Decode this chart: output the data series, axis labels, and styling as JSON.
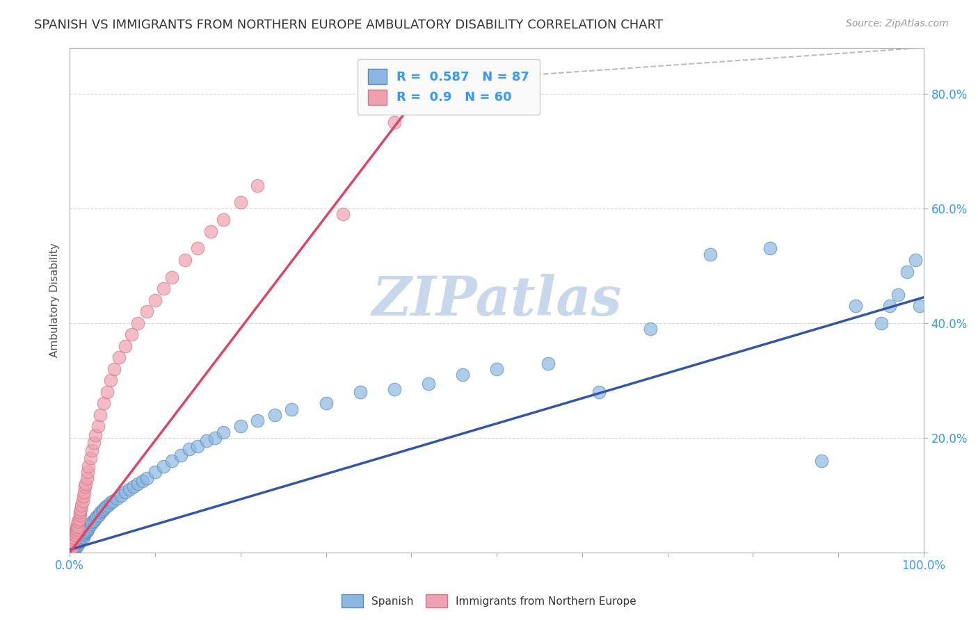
{
  "title": "SPANISH VS IMMIGRANTS FROM NORTHERN EUROPE AMBULATORY DISABILITY CORRELATION CHART",
  "source": "Source: ZipAtlas.com",
  "ylabel": "Ambulatory Disability",
  "xlim": [
    0,
    1.0
  ],
  "ylim": [
    0,
    0.88
  ],
  "xticks": [
    0.0,
    0.1,
    0.2,
    0.3,
    0.4,
    0.5,
    0.6,
    0.7,
    0.8,
    0.9,
    1.0
  ],
  "xticklabels": [
    "0.0%",
    "",
    "",
    "",
    "",
    "",
    "",
    "",
    "",
    "",
    "100.0%"
  ],
  "yticks": [
    0.0,
    0.2,
    0.4,
    0.6,
    0.8
  ],
  "yticklabels": [
    "",
    "20.0%",
    "40.0%",
    "60.0%",
    "80.0%"
  ],
  "spanish_color": "#8BB8E0",
  "spanish_edge": "#5588BB",
  "immigrant_color": "#F0A0B0",
  "immigrant_edge": "#CC7788",
  "trend_blue": "#3355AA",
  "trend_pink": "#DD4466",
  "trend_dashed": "#BBBBBB",
  "legend_box_color": "#FAFAFA",
  "watermark_color": "#C8D8EC",
  "R_spanish": 0.587,
  "N_spanish": 87,
  "R_immigrant": 0.9,
  "N_immigrant": 60,
  "background_color": "#FFFFFF",
  "grid_color": "#CCCCCC",
  "title_fontsize": 13,
  "axis_label_color": "#3399FF",
  "tick_label_color": "#3399FF",
  "spanish_x": [
    0.001,
    0.002,
    0.003,
    0.003,
    0.004,
    0.004,
    0.005,
    0.005,
    0.006,
    0.006,
    0.007,
    0.007,
    0.007,
    0.008,
    0.008,
    0.009,
    0.009,
    0.01,
    0.01,
    0.011,
    0.011,
    0.012,
    0.012,
    0.013,
    0.014,
    0.015,
    0.016,
    0.017,
    0.018,
    0.019,
    0.02,
    0.021,
    0.022,
    0.023,
    0.025,
    0.026,
    0.028,
    0.03,
    0.032,
    0.034,
    0.036,
    0.038,
    0.04,
    0.042,
    0.045,
    0.048,
    0.05,
    0.055,
    0.06,
    0.065,
    0.07,
    0.075,
    0.08,
    0.085,
    0.09,
    0.1,
    0.11,
    0.12,
    0.13,
    0.14,
    0.15,
    0.16,
    0.17,
    0.18,
    0.2,
    0.22,
    0.24,
    0.26,
    0.3,
    0.34,
    0.38,
    0.42,
    0.46,
    0.5,
    0.56,
    0.62,
    0.68,
    0.75,
    0.82,
    0.88,
    0.92,
    0.95,
    0.96,
    0.97,
    0.98,
    0.99,
    0.995
  ],
  "spanish_y": [
    0.002,
    0.004,
    0.003,
    0.006,
    0.005,
    0.008,
    0.007,
    0.01,
    0.009,
    0.012,
    0.008,
    0.011,
    0.014,
    0.013,
    0.016,
    0.015,
    0.018,
    0.014,
    0.017,
    0.02,
    0.022,
    0.019,
    0.023,
    0.025,
    0.028,
    0.03,
    0.027,
    0.032,
    0.034,
    0.036,
    0.038,
    0.04,
    0.043,
    0.046,
    0.05,
    0.053,
    0.056,
    0.06,
    0.063,
    0.066,
    0.07,
    0.073,
    0.076,
    0.08,
    0.083,
    0.087,
    0.09,
    0.095,
    0.1,
    0.105,
    0.11,
    0.115,
    0.12,
    0.125,
    0.13,
    0.14,
    0.15,
    0.16,
    0.17,
    0.18,
    0.185,
    0.195,
    0.2,
    0.21,
    0.22,
    0.23,
    0.24,
    0.25,
    0.26,
    0.28,
    0.285,
    0.295,
    0.31,
    0.32,
    0.33,
    0.28,
    0.39,
    0.52,
    0.53,
    0.16,
    0.43,
    0.4,
    0.43,
    0.45,
    0.49,
    0.51,
    0.43
  ],
  "immigrant_x": [
    0.001,
    0.001,
    0.002,
    0.002,
    0.003,
    0.003,
    0.003,
    0.004,
    0.004,
    0.005,
    0.005,
    0.006,
    0.006,
    0.007,
    0.007,
    0.008,
    0.008,
    0.009,
    0.009,
    0.01,
    0.01,
    0.011,
    0.012,
    0.012,
    0.013,
    0.014,
    0.015,
    0.016,
    0.017,
    0.018,
    0.019,
    0.02,
    0.021,
    0.022,
    0.024,
    0.026,
    0.028,
    0.03,
    0.033,
    0.036,
    0.04,
    0.044,
    0.048,
    0.052,
    0.058,
    0.065,
    0.072,
    0.08,
    0.09,
    0.1,
    0.11,
    0.12,
    0.135,
    0.15,
    0.165,
    0.18,
    0.2,
    0.22,
    0.32,
    0.38
  ],
  "immigrant_y": [
    0.003,
    0.006,
    0.008,
    0.012,
    0.01,
    0.015,
    0.02,
    0.018,
    0.025,
    0.022,
    0.028,
    0.025,
    0.032,
    0.03,
    0.038,
    0.035,
    0.042,
    0.04,
    0.048,
    0.045,
    0.055,
    0.058,
    0.065,
    0.07,
    0.075,
    0.082,
    0.09,
    0.098,
    0.105,
    0.115,
    0.12,
    0.13,
    0.14,
    0.15,
    0.165,
    0.178,
    0.192,
    0.205,
    0.22,
    0.24,
    0.26,
    0.28,
    0.3,
    0.32,
    0.34,
    0.36,
    0.38,
    0.4,
    0.42,
    0.44,
    0.46,
    0.48,
    0.51,
    0.53,
    0.56,
    0.58,
    0.61,
    0.64,
    0.59,
    0.75
  ],
  "trend_blue_x0": 0.0,
  "trend_blue_y0": 0.005,
  "trend_blue_x1": 1.0,
  "trend_blue_y1": 0.445,
  "trend_pink_x0": 0.0,
  "trend_pink_y0": 0.0,
  "trend_pink_x1": 0.42,
  "trend_pink_y1": 0.82,
  "trend_dash_x0": 0.42,
  "trend_dash_y0": 0.82,
  "trend_dash_x1": 1.0,
  "trend_dash_y1": 0.88
}
